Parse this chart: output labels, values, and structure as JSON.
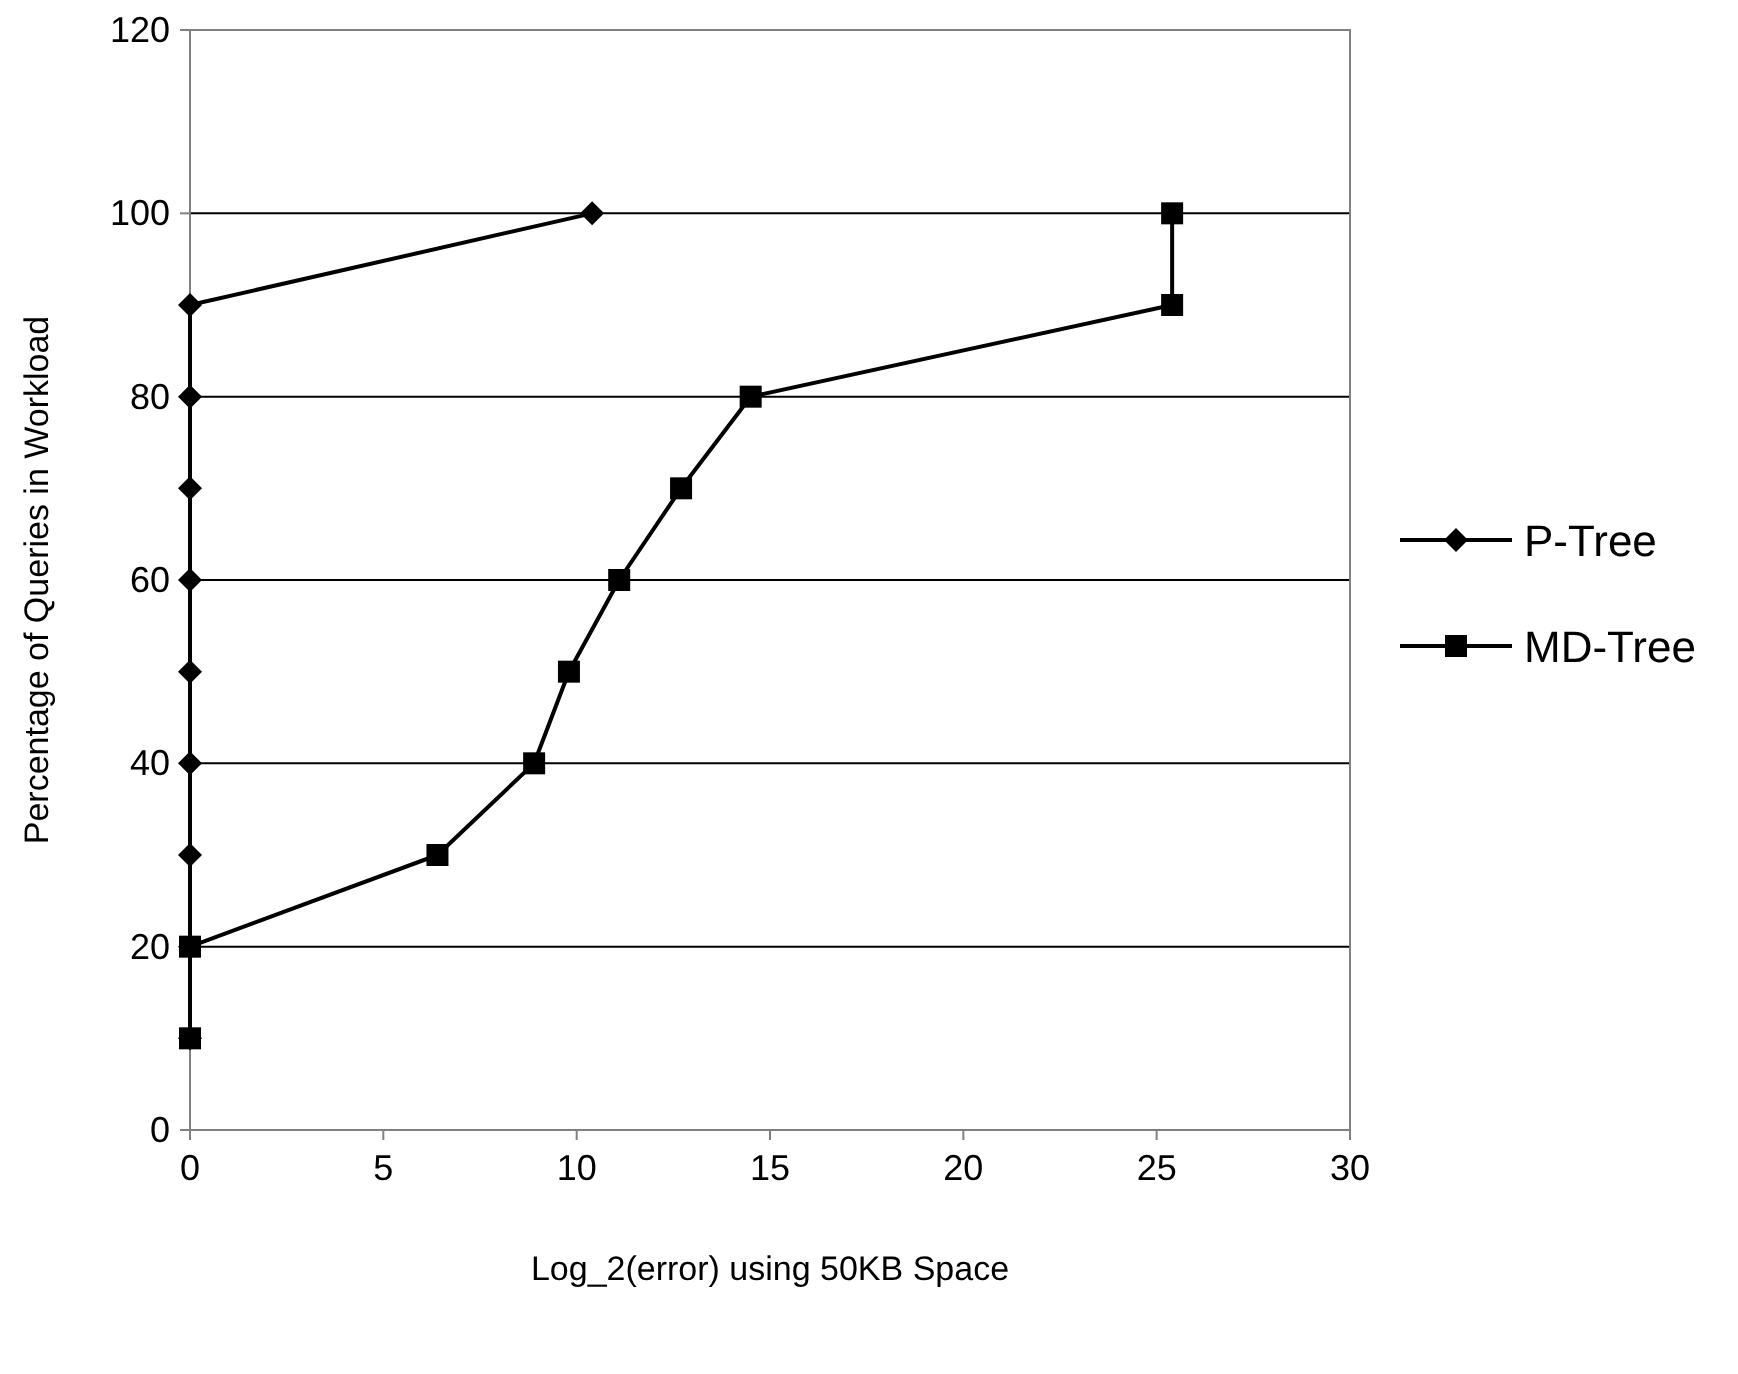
{
  "chart_data": {
    "type": "line",
    "xlabel": "Log_2(error) using 50KB Space",
    "ylabel": "Percentage of Queries in Workload",
    "xlim": [
      0,
      30
    ],
    "xticks": [
      0,
      5,
      10,
      15,
      20,
      25,
      30
    ],
    "ylim": [
      0,
      120
    ],
    "yticks": [
      0,
      20,
      40,
      60,
      80,
      100,
      120
    ],
    "grid": "y",
    "legend": "right",
    "series": [
      {
        "name": "P-Tree",
        "color": "#000000",
        "marker": "diamond",
        "x": [
          0,
          0,
          0,
          0,
          0,
          0,
          0,
          0,
          0,
          10.4
        ],
        "values": [
          10,
          20,
          30,
          40,
          50,
          60,
          70,
          80,
          90,
          100
        ]
      },
      {
        "name": "MD-Tree",
        "color": "#000000",
        "marker": "square",
        "x": [
          0,
          0,
          6.4,
          8.9,
          9.8,
          11.1,
          12.7,
          14.5,
          25.4,
          25.4
        ],
        "values": [
          10,
          20,
          30,
          40,
          50,
          60,
          70,
          80,
          90,
          100
        ]
      }
    ]
  }
}
